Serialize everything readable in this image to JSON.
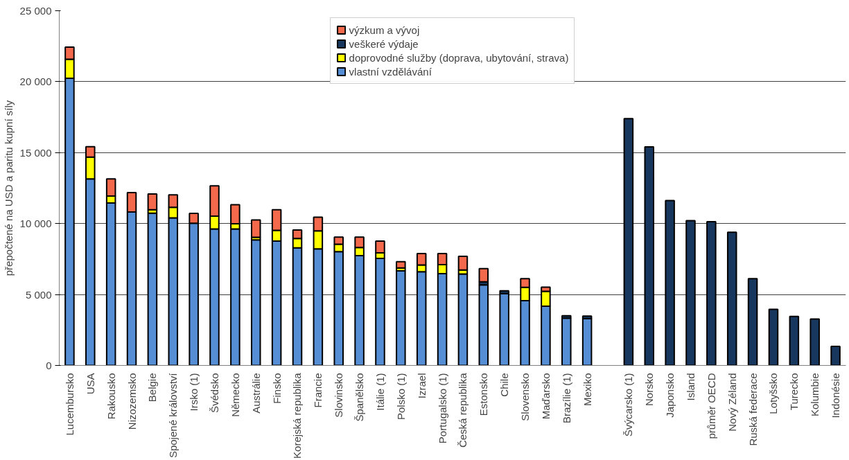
{
  "chart_data": {
    "type": "bar",
    "stacked": true,
    "ylabel": "přepočtené na USD a paritu kupní síly",
    "categories": [
      "Lucembursko",
      "USA",
      "Rakousko",
      "Nizozemsko",
      "Belgie",
      "Spojené království",
      "Irsko (1)",
      "Švédsko",
      "Německo",
      "Austrálie",
      "Finsko",
      "Korejská republika",
      "Francie",
      "Slovinsko",
      "Španělsko",
      "Itálie (1)",
      "Polsko (1)",
      "Izrael",
      "Portugalsko (1)",
      "Česká republika",
      "Estonsko",
      "Chile",
      "Slovensko",
      "Maďarsko",
      "Brazílie (1)",
      "Mexiko",
      null,
      "Švýcarsko (1)",
      "Norsko",
      "Japonsko",
      "Island",
      "průměr OECD",
      "Nový Zéland",
      "Ruská federace",
      "Lotyšsko",
      "Turecko",
      "Kolumbie",
      "Indonésie"
    ],
    "series": [
      {
        "name": "vlastní vzdělávání",
        "color": "#558ed5",
        "values": [
          20240,
          13150,
          11450,
          10820,
          10730,
          10400,
          10020,
          9620,
          9620,
          8850,
          8760,
          8290,
          8220,
          8020,
          7740,
          7540,
          6670,
          6600,
          6470,
          6450,
          5680,
          5060,
          4570,
          4170,
          3330,
          3300,
          null,
          null,
          null,
          null,
          null,
          null,
          null,
          null,
          null,
          null,
          null,
          null
        ]
      },
      {
        "name": "doprovodné služby (doprava, ubytování, strava)",
        "color": "#ffff00",
        "values": [
          1340,
          1540,
          490,
          null,
          240,
          750,
          null,
          900,
          370,
          180,
          760,
          660,
          1270,
          530,
          570,
          390,
          200,
          480,
          630,
          280,
          null,
          null,
          930,
          1050,
          null,
          null,
          null,
          null,
          null,
          null,
          null,
          null,
          null,
          null,
          null,
          null,
          null,
          null
        ]
      },
      {
        "name": "veškeré výdaje",
        "color": "#17375e",
        "values": [
          null,
          null,
          null,
          null,
          null,
          null,
          null,
          null,
          null,
          null,
          null,
          null,
          null,
          null,
          null,
          null,
          null,
          null,
          null,
          null,
          220,
          200,
          null,
          null,
          170,
          180,
          null,
          17390,
          15410,
          11620,
          10200,
          10130,
          9390,
          6110,
          3950,
          3450,
          3270,
          1340
        ]
      },
      {
        "name": "výzkum a vývoj",
        "color": "#f4694c",
        "values": [
          860,
          730,
          1210,
          1360,
          1120,
          880,
          700,
          2140,
          1340,
          1230,
          1450,
          590,
          960,
          500,
          730,
          830,
          440,
          810,
          790,
          960,
          920,
          null,
          610,
          300,
          null,
          null,
          null,
          null,
          null,
          null,
          null,
          null,
          null,
          null,
          null,
          null,
          null,
          null
        ]
      }
    ],
    "ylim": [
      0,
      25000
    ],
    "yticks": [
      {
        "value": 0,
        "label": "0"
      },
      {
        "value": 5000,
        "label": "5 000"
      },
      {
        "value": 10000,
        "label": "10 000"
      },
      {
        "value": 15000,
        "label": "15 000"
      },
      {
        "value": 20000,
        "label": "20 000"
      },
      {
        "value": 25000,
        "label": "25 000"
      }
    ],
    "grid": "y",
    "legend": "top"
  }
}
